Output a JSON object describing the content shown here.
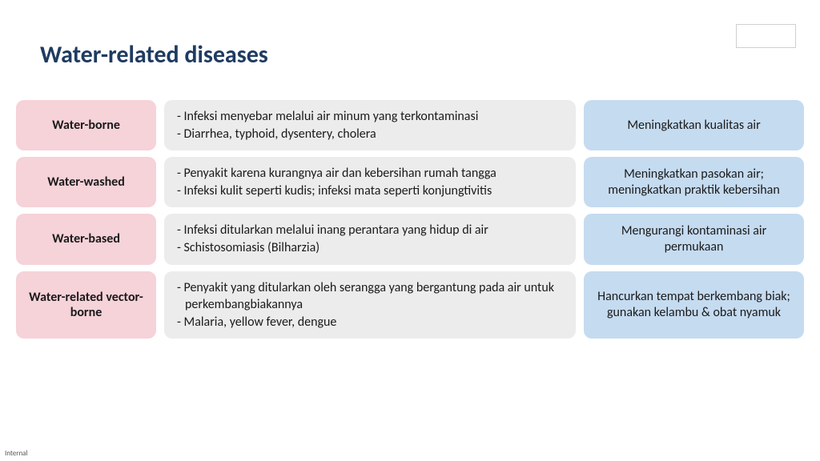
{
  "title": "Water-related diseases",
  "title_color": "#1f3b61",
  "footer": "Internal",
  "colors": {
    "cat_bg": "#f6d2d9",
    "desc_bg": "#ececec",
    "action_bg": "#c5dbf0",
    "text": "#1a1a1a"
  },
  "rows": [
    {
      "category": "Water-borne",
      "desc": [
        "Infeksi menyebar melalui air minum yang terkontaminasi",
        "Diarrhea, typhoid, dysentery, cholera"
      ],
      "justify": [
        true,
        false
      ],
      "action": "Meningkatkan kualitas air"
    },
    {
      "category": "Water-washed",
      "desc": [
        "Penyakit karena kurangnya air dan kebersihan rumah tangga",
        "Infeksi kulit seperti kudis; infeksi mata seperti konjungtivitis"
      ],
      "justify": [
        false,
        true
      ],
      "action": "Meningkatkan pasokan air; meningkatkan praktik kebersihan"
    },
    {
      "category": "Water-based",
      "desc": [
        "Infeksi ditularkan melalui inang perantara yang hidup di air",
        "Schistosomiasis (Bilharzia)"
      ],
      "justify": [
        false,
        false
      ],
      "action": "Mengurangi kontaminasi air permukaan"
    },
    {
      "category": "Water-related vector-borne",
      "desc": [
        "Penyakit yang ditularkan oleh serangga yang bergantung pada air untuk perkembangbiakannya",
        "Malaria, yellow fever, dengue"
      ],
      "justify": [
        false,
        false
      ],
      "action": "Hancurkan tempat berkembang biak; gunakan kelambu & obat nyamuk"
    }
  ]
}
